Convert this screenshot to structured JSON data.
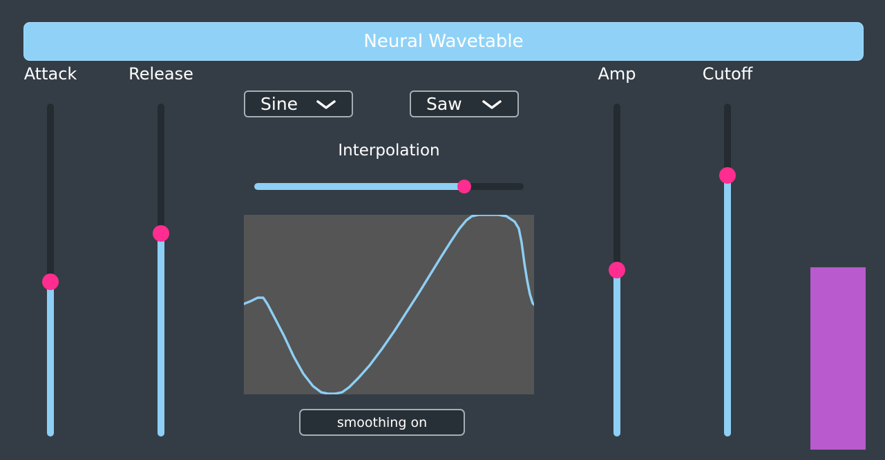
{
  "title": "Neural Wavetable",
  "sliders": {
    "attack": {
      "label": "Attack",
      "value": 0.465
    },
    "release": {
      "label": "Release",
      "value": 0.61
    },
    "amp": {
      "label": "Amp",
      "value": 0.5
    },
    "cutoff": {
      "label": "Cutoff",
      "value": 0.785
    }
  },
  "oscillators": {
    "osc_a": {
      "selected": "Sine"
    },
    "osc_b": {
      "selected": "Saw"
    }
  },
  "interpolation": {
    "label": "Interpolation",
    "value": 0.78
  },
  "smoothing": {
    "label": "smoothing on"
  },
  "level_meter": {
    "value": 0.55,
    "color": "#b95ace"
  },
  "colors": {
    "background": "#343d46",
    "accent": "#8ecff5",
    "thumb": "#ff2d8f",
    "track": "#242b31",
    "display_bg": "#555555"
  }
}
